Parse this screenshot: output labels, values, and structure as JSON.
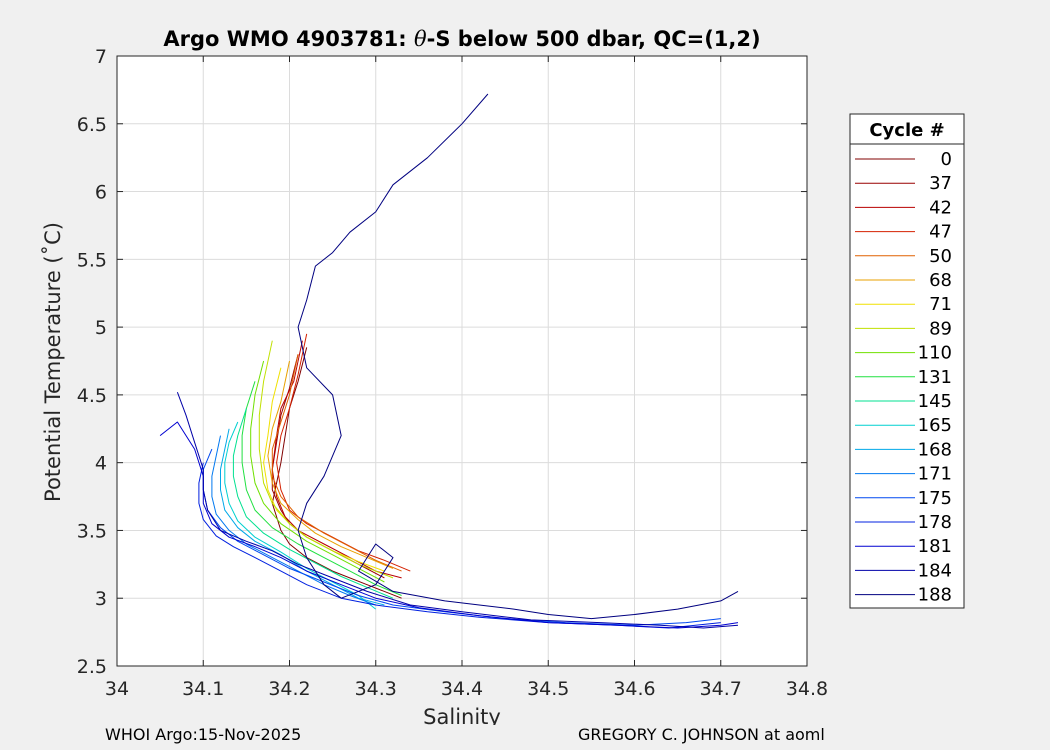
{
  "chart_data": {
    "type": "line",
    "title": "Argo WMO 4903781: θ-S below 500 dbar,  QC=(1,2)",
    "title_parts": {
      "prefix": "Argo WMO 4903781: ",
      "theta": "θ",
      "suffix": "-S below 500 dbar,  QC=(1,2)"
    },
    "xlabel": "Salinity",
    "ylabel": "Potential Temperature (˚C)",
    "xlim": [
      34,
      34.8
    ],
    "ylim": [
      2.5,
      7
    ],
    "xticks": [
      34,
      34.1,
      34.2,
      34.3,
      34.4,
      34.5,
      34.6,
      34.7,
      34.8
    ],
    "xtick_labels": [
      "34",
      "34.1",
      "34.2",
      "34.3",
      "34.4",
      "34.5",
      "34.6",
      "34.7",
      "34.8"
    ],
    "yticks": [
      2.5,
      3,
      3.5,
      4,
      4.5,
      5,
      5.5,
      6,
      6.5,
      7
    ],
    "ytick_labels": [
      "2.5",
      "3",
      "3.5",
      "4",
      "4.5",
      "5",
      "5.5",
      "6",
      "6.5",
      "7"
    ],
    "grid": true,
    "legend_title": "Cycle #",
    "legend_position": "right",
    "series": [
      {
        "name": "0",
        "color": "#800000",
        "x": [
          34.22,
          34.21,
          34.2,
          34.195,
          34.19,
          34.185,
          34.18,
          34.185,
          34.19,
          34.2,
          34.22,
          34.25,
          34.29,
          34.33
        ],
        "y": [
          4.85,
          4.6,
          4.4,
          4.2,
          4.0,
          3.85,
          3.7,
          3.6,
          3.5,
          3.4,
          3.3,
          3.2,
          3.1,
          3.0
        ]
      },
      {
        "name": "37",
        "color": "#990000",
        "x": [
          34.21,
          34.2,
          34.19,
          34.185,
          34.18,
          34.18,
          34.19,
          34.2,
          34.22,
          34.25,
          34.28,
          34.31
        ],
        "y": [
          4.8,
          4.55,
          4.35,
          4.15,
          3.95,
          3.8,
          3.65,
          3.55,
          3.45,
          3.35,
          3.25,
          3.15
        ]
      },
      {
        "name": "42",
        "color": "#b80000",
        "x": [
          34.215,
          34.205,
          34.19,
          34.185,
          34.18,
          34.185,
          34.195,
          34.21,
          34.24,
          34.27,
          34.3,
          34.33
        ],
        "y": [
          4.9,
          4.6,
          4.4,
          4.2,
          3.95,
          3.75,
          3.6,
          3.5,
          3.4,
          3.3,
          3.2,
          3.15
        ]
      },
      {
        "name": "47",
        "color": "#d42000",
        "x": [
          34.22,
          34.21,
          34.2,
          34.19,
          34.185,
          34.19,
          34.2,
          34.22,
          34.25,
          34.28,
          34.31,
          34.34
        ],
        "y": [
          4.95,
          4.65,
          4.4,
          4.2,
          4.0,
          3.8,
          3.65,
          3.55,
          3.45,
          3.35,
          3.28,
          3.2
        ]
      },
      {
        "name": "50",
        "color": "#e06000",
        "x": [
          34.21,
          34.2,
          34.19,
          34.18,
          34.18,
          34.19,
          34.21,
          34.24,
          34.27,
          34.3,
          34.33
        ],
        "y": [
          4.8,
          4.5,
          4.3,
          4.1,
          3.9,
          3.75,
          3.6,
          3.48,
          3.38,
          3.28,
          3.2
        ]
      },
      {
        "name": "68",
        "color": "#e8a000",
        "x": [
          34.2,
          34.19,
          34.18,
          34.175,
          34.18,
          34.19,
          34.21,
          34.23,
          34.26,
          34.29,
          34.32
        ],
        "y": [
          4.75,
          4.45,
          4.25,
          4.05,
          3.85,
          3.7,
          3.58,
          3.48,
          3.38,
          3.3,
          3.22
        ]
      },
      {
        "name": "71",
        "color": "#f0e000",
        "x": [
          34.19,
          34.18,
          34.175,
          34.17,
          34.175,
          34.185,
          34.2,
          34.22,
          34.25,
          34.28,
          34.31
        ],
        "y": [
          4.7,
          4.45,
          4.2,
          4.0,
          3.8,
          3.65,
          3.55,
          3.45,
          3.35,
          3.27,
          3.2
        ]
      },
      {
        "name": "89",
        "color": "#c0e000",
        "x": [
          34.18,
          34.17,
          34.165,
          34.165,
          34.17,
          34.18,
          34.2,
          34.22,
          34.25,
          34.28,
          34.32
        ],
        "y": [
          4.9,
          4.6,
          4.35,
          4.1,
          3.85,
          3.7,
          3.55,
          3.45,
          3.35,
          3.25,
          3.15
        ]
      },
      {
        "name": "110",
        "color": "#70e000",
        "x": [
          34.17,
          34.16,
          34.155,
          34.155,
          34.16,
          34.17,
          34.19,
          34.22,
          34.25,
          34.28,
          34.31
        ],
        "y": [
          4.75,
          4.5,
          4.25,
          4.05,
          3.85,
          3.7,
          3.55,
          3.42,
          3.32,
          3.22,
          3.12
        ]
      },
      {
        "name": "131",
        "color": "#20e040",
        "x": [
          34.16,
          34.15,
          34.145,
          34.145,
          34.15,
          34.16,
          34.18,
          34.21,
          34.24,
          34.27,
          34.3,
          34.33
        ],
        "y": [
          4.6,
          4.4,
          4.2,
          4.0,
          3.8,
          3.65,
          3.52,
          3.4,
          3.3,
          3.2,
          3.1,
          3.02
        ]
      },
      {
        "name": "145",
        "color": "#00e090",
        "x": [
          34.15,
          34.14,
          34.135,
          34.135,
          34.14,
          34.15,
          34.17,
          34.2,
          34.23,
          34.26,
          34.29,
          34.32
        ],
        "y": [
          4.4,
          4.2,
          4.05,
          3.9,
          3.75,
          3.6,
          3.48,
          3.36,
          3.26,
          3.16,
          3.08,
          3.0
        ]
      },
      {
        "name": "165",
        "color": "#00d0d0",
        "x": [
          34.14,
          34.13,
          34.125,
          34.125,
          34.13,
          34.14,
          34.16,
          34.19,
          34.22,
          34.25,
          34.28,
          34.3
        ],
        "y": [
          4.3,
          4.15,
          4.0,
          3.85,
          3.7,
          3.57,
          3.45,
          3.34,
          3.22,
          3.12,
          3.02,
          2.92
        ]
      },
      {
        "name": "168",
        "color": "#00a8e8",
        "x": [
          34.13,
          34.125,
          34.12,
          34.12,
          34.125,
          34.14,
          34.16,
          34.19,
          34.22,
          34.25,
          34.28,
          34.31
        ],
        "y": [
          4.25,
          4.1,
          3.95,
          3.8,
          3.65,
          3.52,
          3.42,
          3.32,
          3.2,
          3.1,
          3.0,
          2.95
        ]
      },
      {
        "name": "171",
        "color": "#0078f0",
        "x": [
          34.12,
          34.115,
          34.11,
          34.11,
          34.115,
          34.13,
          34.15,
          34.18,
          34.21,
          34.24,
          34.27,
          34.3
        ],
        "y": [
          4.2,
          4.05,
          3.9,
          3.75,
          3.62,
          3.5,
          3.4,
          3.3,
          3.2,
          3.1,
          3.02,
          2.95
        ]
      },
      {
        "name": "175",
        "color": "#0048f0",
        "x": [
          34.11,
          34.1,
          34.1,
          34.105,
          34.12,
          34.14,
          34.17,
          34.2,
          34.24,
          34.28,
          34.32,
          34.38,
          34.45,
          34.52,
          34.6,
          34.66,
          34.7
        ],
        "y": [
          4.1,
          3.95,
          3.8,
          3.65,
          3.52,
          3.42,
          3.32,
          3.22,
          3.12,
          3.02,
          2.95,
          2.9,
          2.85,
          2.82,
          2.8,
          2.82,
          2.85
        ]
      },
      {
        "name": "178",
        "color": "#0020e0",
        "x": [
          34.1,
          34.095,
          34.095,
          34.1,
          34.115,
          34.135,
          34.16,
          34.19,
          34.22,
          34.26,
          34.3,
          34.36,
          34.42,
          34.5,
          34.58,
          34.64,
          34.7
        ],
        "y": [
          4.0,
          3.85,
          3.7,
          3.58,
          3.46,
          3.38,
          3.3,
          3.2,
          3.1,
          3.0,
          2.95,
          2.9,
          2.86,
          2.82,
          2.8,
          2.78,
          2.82
        ]
      },
      {
        "name": "181",
        "color": "#0000d0",
        "x": [
          34.05,
          34.07,
          34.09,
          34.1,
          34.1,
          34.11,
          34.13,
          34.16,
          34.19,
          34.22,
          34.26,
          34.3,
          34.35,
          34.42,
          34.5,
          34.58,
          34.65,
          34.7,
          34.72
        ],
        "y": [
          4.2,
          4.3,
          4.1,
          3.9,
          3.7,
          3.55,
          3.45,
          3.38,
          3.3,
          3.2,
          3.1,
          3.0,
          2.93,
          2.87,
          2.82,
          2.8,
          2.78,
          2.8,
          2.82
        ]
      },
      {
        "name": "184",
        "color": "#0000a8",
        "x": [
          34.07,
          34.08,
          34.09,
          34.1,
          34.1,
          34.105,
          34.12,
          34.15,
          34.18,
          34.21,
          34.25,
          34.29,
          34.34,
          34.4,
          34.48,
          34.56,
          34.63,
          34.68,
          34.72
        ],
        "y": [
          4.52,
          4.35,
          4.15,
          3.95,
          3.8,
          3.65,
          3.5,
          3.42,
          3.35,
          3.25,
          3.15,
          3.05,
          2.95,
          2.9,
          2.84,
          2.82,
          2.8,
          2.78,
          2.8
        ]
      },
      {
        "name": "188",
        "color": "#000080",
        "x": [
          34.43,
          34.4,
          34.36,
          34.32,
          34.3,
          34.27,
          34.25,
          34.23,
          34.22,
          34.21,
          34.22,
          34.25,
          34.26,
          34.24,
          34.22,
          34.21,
          34.22,
          34.24,
          34.26,
          34.3,
          34.32,
          34.3,
          34.28,
          34.32,
          34.38,
          34.42,
          34.46,
          34.5,
          34.55,
          34.6,
          34.65,
          34.7,
          34.72
        ],
        "y": [
          6.72,
          6.5,
          6.25,
          6.05,
          5.85,
          5.7,
          5.55,
          5.45,
          5.2,
          5.0,
          4.7,
          4.5,
          4.2,
          3.9,
          3.7,
          3.5,
          3.3,
          3.1,
          3.0,
          3.1,
          3.3,
          3.4,
          3.2,
          3.05,
          2.98,
          2.95,
          2.92,
          2.88,
          2.85,
          2.88,
          2.92,
          2.98,
          3.05
        ]
      }
    ]
  },
  "footer": {
    "left": "WHOI Argo:15-Nov-2025",
    "right": "GREGORY C. JOHNSON at aoml"
  }
}
